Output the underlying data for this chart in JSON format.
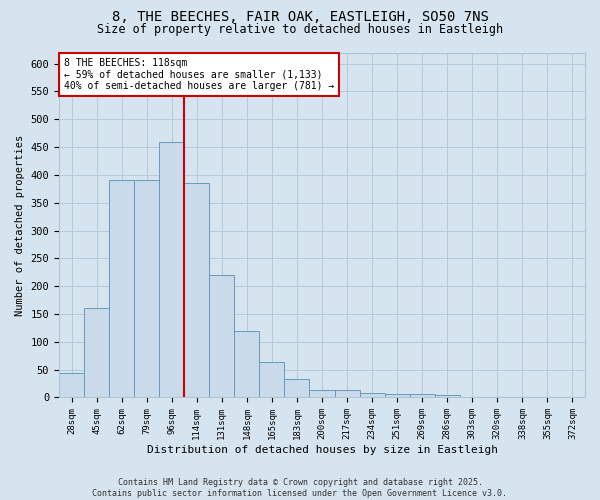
{
  "title_line1": "8, THE BEECHES, FAIR OAK, EASTLEIGH, SO50 7NS",
  "title_line2": "Size of property relative to detached houses in Eastleigh",
  "xlabel": "Distribution of detached houses by size in Eastleigh",
  "ylabel": "Number of detached properties",
  "categories": [
    "28sqm",
    "45sqm",
    "62sqm",
    "79sqm",
    "96sqm",
    "114sqm",
    "131sqm",
    "148sqm",
    "165sqm",
    "183sqm",
    "200sqm",
    "217sqm",
    "234sqm",
    "251sqm",
    "269sqm",
    "286sqm",
    "303sqm",
    "320sqm",
    "338sqm",
    "355sqm",
    "372sqm"
  ],
  "values": [
    44,
    160,
    390,
    390,
    460,
    385,
    220,
    120,
    63,
    33,
    13,
    13,
    8,
    7,
    6,
    5,
    0,
    0,
    0,
    0,
    0
  ],
  "bar_color": "#c9daea",
  "bar_edge_color": "#6699bb",
  "vline_index": 5,
  "vline_color": "#cc0000",
  "annotation_text": "8 THE BEECHES: 118sqm\n← 59% of detached houses are smaller (1,133)\n40% of semi-detached houses are larger (781) →",
  "annotation_box_facecolor": "#ffffff",
  "annotation_box_edgecolor": "#cc0000",
  "ylim": [
    0,
    620
  ],
  "yticks": [
    0,
    50,
    100,
    150,
    200,
    250,
    300,
    350,
    400,
    450,
    500,
    550,
    600
  ],
  "grid_color": "#b0c4d4",
  "background_color": "#d6e4ef",
  "footer_text": "Contains HM Land Registry data © Crown copyright and database right 2025.\nContains public sector information licensed under the Open Government Licence v3.0."
}
